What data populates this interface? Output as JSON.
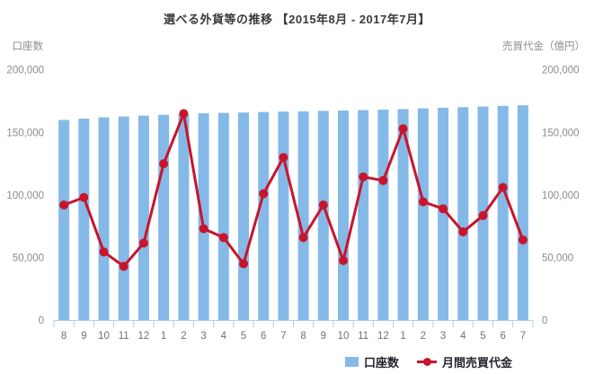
{
  "title": "選べる外貨等の推移 【2015年8月 - 2017年7月】",
  "chart_data": {
    "type": "combo",
    "title": "選べる外貨等の推移 【2015年8月 - 2017年7月】",
    "categories": [
      "8",
      "9",
      "10",
      "11",
      "12",
      "1",
      "2",
      "3",
      "4",
      "5",
      "6",
      "7",
      "8",
      "9",
      "10",
      "11",
      "12",
      "1",
      "2",
      "3",
      "4",
      "5",
      "6",
      "7"
    ],
    "series": [
      {
        "name": "口座数",
        "type": "bar",
        "axis": "left",
        "color": "#85B9E8",
        "values": [
          160000,
          161000,
          162000,
          162700,
          163400,
          164100,
          164700,
          165200,
          165600,
          165900,
          166300,
          166600,
          166900,
          167200,
          167500,
          167800,
          168200,
          168700,
          169200,
          169700,
          170200,
          170700,
          171200,
          171700
        ]
      },
      {
        "name": "月間売買代金",
        "type": "line",
        "axis": "right",
        "color": "#C9142B",
        "values": [
          92000,
          98000,
          54500,
          43000,
          61500,
          125000,
          165000,
          73000,
          66000,
          45000,
          101000,
          130000,
          66000,
          92000,
          47500,
          114500,
          111500,
          153000,
          94500,
          89000,
          70500,
          83500,
          106000,
          64000
        ]
      }
    ],
    "left_axis": {
      "title": "口座数",
      "min": 0,
      "max": 200000,
      "ticks": [
        0,
        50000,
        100000,
        150000,
        200000
      ]
    },
    "right_axis": {
      "title": "売買代金（億円）",
      "min": 0,
      "max": 200000,
      "ticks": [
        0,
        50000,
        100000,
        150000,
        200000
      ]
    },
    "grid": false,
    "legend_position": "bottom",
    "style": {
      "bar_color": "#85B9E8",
      "line_color": "#C9142B",
      "axis_line_color": "#B9CBDC",
      "title_color": "#3A3A3A",
      "y_label_color": "#8C8C8C",
      "x_label_color": "#74706B",
      "legend_text_color": "#24242E",
      "background": "#FFFFFF"
    }
  }
}
